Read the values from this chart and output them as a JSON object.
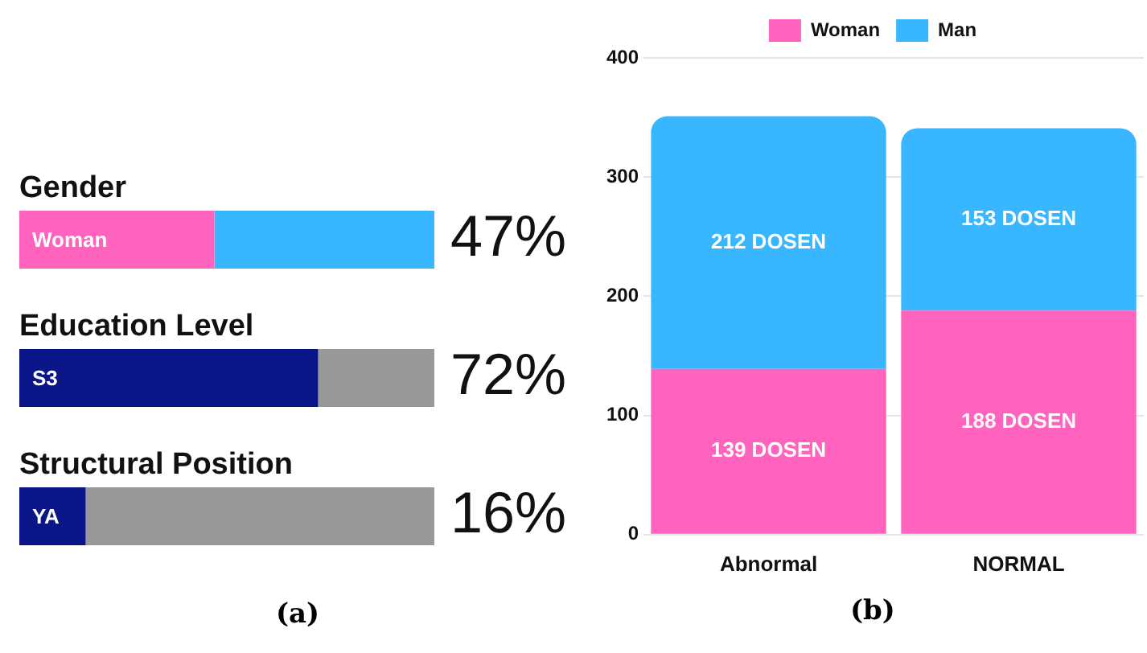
{
  "chart_data": [
    {
      "type": "bar",
      "orientation": "horizontal",
      "stacked": true,
      "xlim": [
        0,
        100
      ],
      "tick_labels": "y",
      "grid": false,
      "legend": false,
      "categories": [
        "Gender",
        "Education Level",
        "Structural Position"
      ],
      "series": [
        {
          "colors": [
            "#ff63bd",
            "#0a1587",
            "#0a1587"
          ],
          "values": [
            47,
            72,
            16
          ],
          "value_labels": [
            "47%",
            "72%",
            "16%"
          ]
        },
        {
          "colors": [
            "#38b6ff",
            "#999999",
            "#999999"
          ],
          "values": [
            53,
            28,
            84
          ]
        }
      ],
      "annotations": [
        "Woman",
        "S3",
        "YA",
        "(a)"
      ]
    },
    {
      "type": "bar",
      "stacked": true,
      "categories": [
        "Abnormal",
        "NORMAL"
      ],
      "ylim": [
        0,
        400
      ],
      "yticks": [
        0,
        100,
        200,
        300,
        400
      ],
      "grid": "y",
      "legend": "top",
      "series": [
        {
          "name": "Woman",
          "color": "#ff63bd",
          "values": [
            139,
            188
          ],
          "value_labels": [
            "139 DOSEN",
            "188 DOSEN"
          ]
        },
        {
          "name": "Man",
          "color": "#38b6ff",
          "values": [
            212,
            153
          ],
          "value_labels": [
            "212 DOSEN",
            "153 DOSEN"
          ]
        }
      ],
      "annotations": [
        "(b)"
      ]
    }
  ]
}
